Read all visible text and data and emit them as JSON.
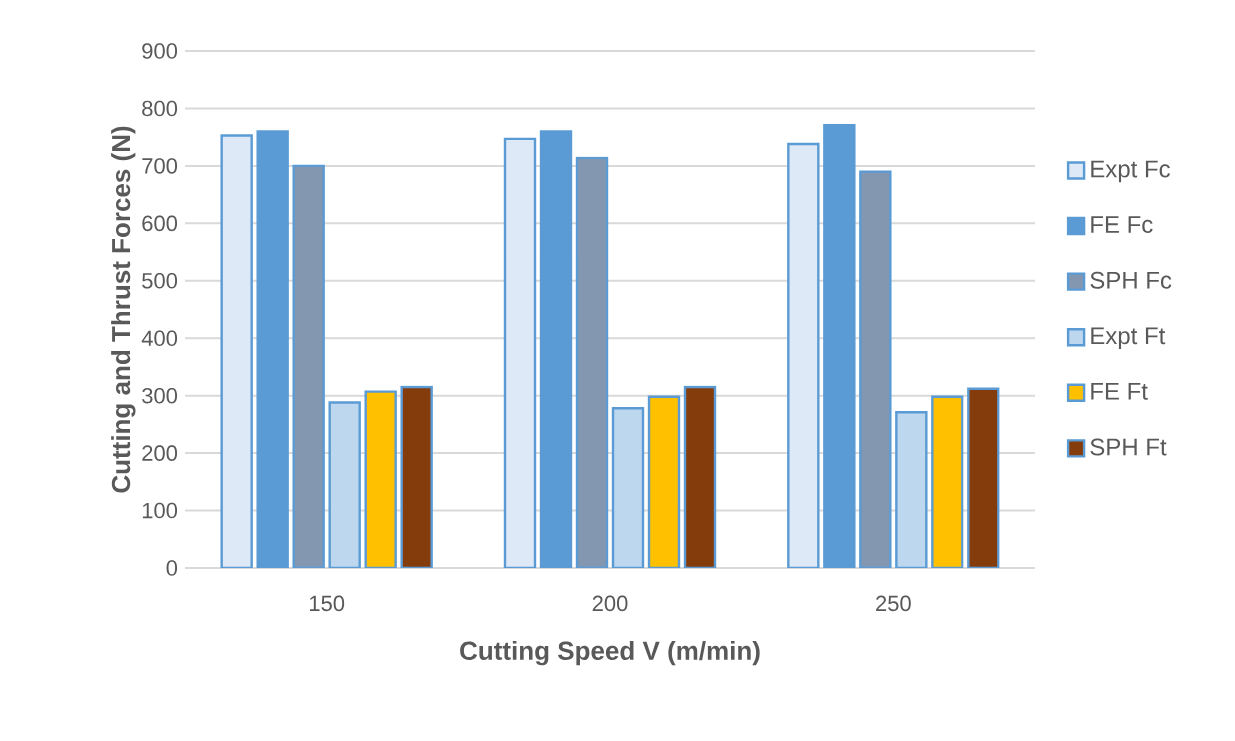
{
  "chart_data": {
    "type": "bar",
    "xlabel": "Cutting Speed V (m/min)",
    "ylabel": "Cutting and Thrust Forces (N)",
    "categories": [
      "150",
      "200",
      "250"
    ],
    "series": [
      {
        "name": "Expt Fc",
        "color": "#dde9f6",
        "values": [
          753,
          747,
          738
        ]
      },
      {
        "name": "FE Fc",
        "color": "#5b9bd5",
        "values": [
          760,
          760,
          771
        ]
      },
      {
        "name": "SPH Fc",
        "color": "#8497b0",
        "values": [
          700,
          714,
          690
        ]
      },
      {
        "name": "Expt Ft",
        "color": "#bdd7ee",
        "values": [
          288,
          278,
          271
        ]
      },
      {
        "name": "FE Ft",
        "color": "#ffc000",
        "values": [
          307,
          298,
          298
        ]
      },
      {
        "name": "SPH Ft",
        "color": "#843c0c",
        "values": [
          315,
          315,
          312
        ]
      }
    ],
    "ylim": [
      0,
      900
    ],
    "yticks": [
      0,
      100,
      200,
      300,
      400,
      500,
      600,
      700,
      800,
      900
    ],
    "grid": "y",
    "legend": "right"
  }
}
